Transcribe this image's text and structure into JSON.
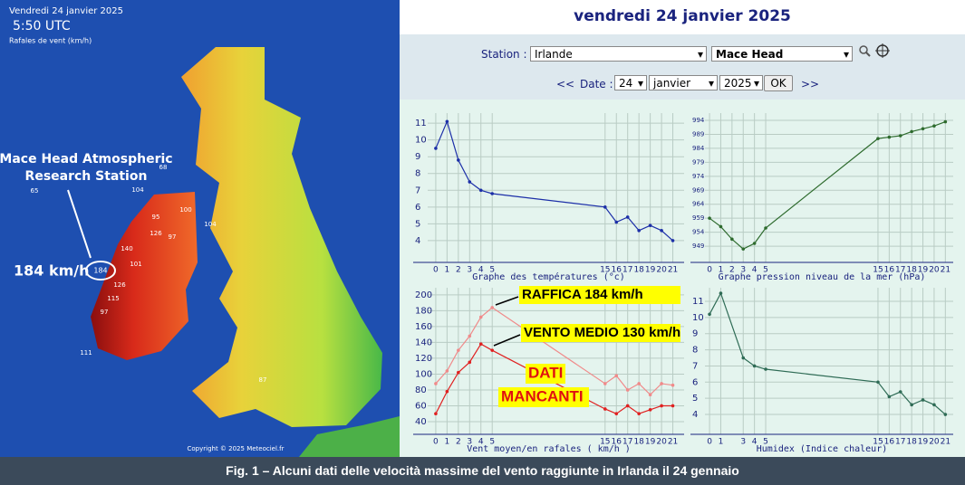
{
  "caption": "Fig. 1 – Alcuni dati delle velocità massime del vento raggiunte in Irlanda il 24 gennaio",
  "map": {
    "date": "Vendredi 24 janvier 2025",
    "time": "5:50 UTC",
    "subtitle": "Rafales de vent (km/h)",
    "station_line1": "Mace Head Atmospheric",
    "station_line2": "Research Station",
    "gust_label": "184 km/h",
    "gust_marker": "184",
    "copyright": "Copyright © 2025 Meteociel.fr",
    "labels": [
      65,
      104,
      95,
      126,
      140,
      100,
      97,
      101,
      126,
      115,
      97,
      111,
      104,
      87,
      68
    ]
  },
  "form": {
    "title": "vendredi 24 janvier 2025",
    "station_label": "Station :",
    "country": "Irlande",
    "station": "Mace Head",
    "prev": "<<",
    "date_label": "Date :",
    "day": "24",
    "month": "janvier",
    "year": "2025",
    "ok": "OK",
    "next": ">>"
  },
  "chart_data": [
    {
      "type": "line",
      "xlabel": "Graphe des températures (°c)",
      "color": "#1c2fa8",
      "x": [
        0,
        1,
        2,
        3,
        4,
        5,
        15,
        16,
        17,
        18,
        19,
        20,
        21
      ],
      "values": [
        9.5,
        11.1,
        8.8,
        7.5,
        7,
        6.8,
        6.0,
        5.1,
        5.4,
        4.6,
        4.9,
        4.6,
        4.0
      ],
      "xlim": [
        -2,
        22
      ],
      "xticks": [
        0,
        1,
        2,
        3,
        4,
        5,
        15,
        16,
        17,
        18,
        19,
        20,
        21
      ],
      "ylim": [
        2.7,
        11.6
      ],
      "yticks": [
        4,
        5,
        6,
        7,
        8,
        9,
        10,
        11
      ],
      "grid": true
    },
    {
      "type": "line",
      "xlabel": "Graphe pression niveau de la mer (hPa)",
      "color": "#2e6b2e",
      "x": [
        0,
        1,
        2,
        3,
        4,
        5,
        15,
        16,
        17,
        18,
        19,
        20,
        21
      ],
      "values": [
        959,
        956,
        951.5,
        948,
        950,
        955.5,
        987.5,
        988,
        988.5,
        990,
        991,
        992,
        993.5
      ],
      "xlim": [
        -1.7,
        21.7
      ],
      "xticks": [
        0,
        1,
        2,
        3,
        4,
        5,
        15,
        16,
        17,
        18,
        19,
        20,
        21
      ],
      "ylim": [
        943.2,
        996.6
      ],
      "yticks": [
        949,
        954,
        959,
        964,
        969,
        974,
        979,
        984,
        989,
        994
      ],
      "grid": true
    },
    {
      "type": "line",
      "xlabel": "Vent moyen/en rafales ( km/h )",
      "x": [
        0,
        1,
        2,
        3,
        4,
        5,
        15,
        16,
        17,
        18,
        19,
        20,
        21
      ],
      "series": [
        {
          "color": "#f08a8a",
          "values": [
            88,
            104,
            130,
            148,
            172,
            184,
            88,
            98,
            80,
            88,
            74,
            88,
            86
          ]
        },
        {
          "color": "#e02020",
          "values": [
            50,
            78,
            102,
            115,
            138,
            130,
            56,
            50,
            60,
            50,
            55,
            60,
            60
          ]
        }
      ],
      "annotations": [
        "RAFFICA 184 km/h",
        "VENTO MEDIO 130 km/h",
        "DATI",
        "MANCANTI"
      ],
      "xlim": [
        -2,
        22
      ],
      "xticks": [
        0,
        1,
        2,
        3,
        4,
        5,
        15,
        16,
        17,
        18,
        19,
        20,
        21
      ],
      "ylim": [
        24,
        209
      ],
      "yticks": [
        40,
        60,
        80,
        100,
        120,
        140,
        160,
        180,
        200
      ],
      "grid": true
    },
    {
      "type": "line",
      "xlabel": "Humidex (Indice chaleur)",
      "color": "#2e6b55",
      "x": [
        0,
        1,
        3,
        4,
        5,
        15,
        16,
        17,
        18,
        19,
        20,
        21
      ],
      "values": [
        10.2,
        11.5,
        7.5,
        7,
        6.8,
        6.0,
        5.1,
        5.4,
        4.6,
        4.9,
        4.6,
        4.0
      ],
      "xlim": [
        -1.7,
        21.7
      ],
      "xticks": [
        0,
        1,
        3,
        4,
        5,
        15,
        16,
        17,
        18,
        19,
        20,
        21
      ],
      "ylim": [
        2.77,
        11.84
      ],
      "yticks": [
        4,
        5,
        6,
        7,
        8,
        9,
        10,
        11
      ],
      "grid": true
    }
  ]
}
